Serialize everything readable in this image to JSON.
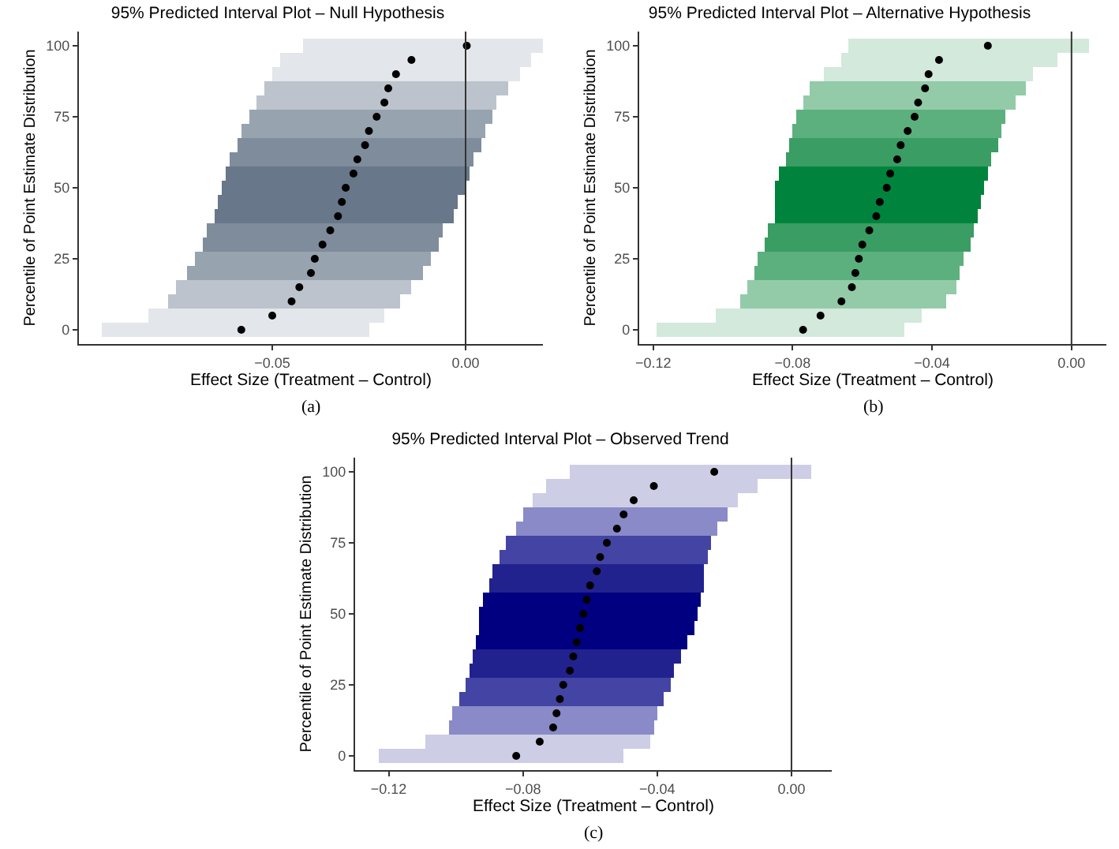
{
  "chart_data": [
    {
      "type": "bar",
      "orientation": "horizontal",
      "title": "95% Predicted Interval Plot – Null Hypothesis",
      "xlabel": "Effect Size (Treatment – Control)",
      "ylabel": "Percentile of Point Estimate Distribution",
      "annotations": [
        "(a)"
      ],
      "categories": [
        "100",
        null,
        null,
        null,
        null,
        "75",
        null,
        null,
        null,
        null,
        "50",
        null,
        null,
        null,
        null,
        "25",
        null,
        null,
        null,
        null,
        "0"
      ],
      "series": [
        {
          "type": "bar",
          "base": [
            -0.042,
            -0.048,
            -0.05,
            -0.052,
            -0.054,
            -0.056,
            -0.058,
            -0.059,
            -0.061,
            -0.062,
            -0.063,
            -0.064,
            -0.065,
            -0.067,
            -0.068,
            -0.07,
            -0.072,
            -0.075,
            -0.077,
            -0.082,
            -0.094
          ],
          "values": [
            0.062,
            0.065,
            0.064,
            0.063,
            0.062,
            0.063,
            0.063,
            0.063,
            0.063,
            0.063,
            0.063,
            0.062,
            0.062,
            0.061,
            0.061,
            0.061,
            0.061,
            0.061,
            0.06,
            0.061,
            0.069
          ],
          "colors": [
            "#e3e6ea",
            "#e3e6ea",
            "#e3e6ea",
            "#bcc3cc",
            "#bcc3cc",
            "#98a3b0",
            "#98a3b0",
            "#7f8c9b",
            "#7f8c9b",
            "#687789",
            "#687789",
            "#687789",
            "#687789",
            "#7f8c9b",
            "#7f8c9b",
            "#98a3b0",
            "#98a3b0",
            "#bcc3cc",
            "#bcc3cc",
            "#e3e6ea",
            "#e3e6ea"
          ]
        },
        {
          "type": "scatter",
          "color": "#000000",
          "values": [
            0.0003,
            -0.014,
            -0.018,
            -0.02,
            -0.021,
            -0.023,
            -0.025,
            -0.026,
            -0.028,
            -0.029,
            -0.031,
            -0.032,
            -0.033,
            -0.035,
            -0.037,
            -0.039,
            -0.04,
            -0.043,
            -0.045,
            -0.05,
            -0.058
          ]
        }
      ],
      "xlim": [
        -0.1,
        0.02
      ],
      "xticks": [
        {
          "value": -0.05,
          "label": "−0.05"
        },
        {
          "value": 0,
          "label": "0.00"
        }
      ],
      "ref_lines": [
        {
          "axis": "x",
          "value": 0,
          "color": "#333333"
        }
      ],
      "grid": false,
      "legend": false,
      "marker": "circle"
    },
    {
      "type": "bar",
      "orientation": "horizontal",
      "title": "95% Predicted Interval Plot – Alternative Hypothesis",
      "xlabel": "Effect Size (Treatment – Control)",
      "ylabel": "Percentile of Point Estimate Distribution",
      "annotations": [
        "(b)"
      ],
      "categories": [
        "100",
        null,
        null,
        null,
        null,
        "75",
        null,
        null,
        null,
        null,
        "50",
        null,
        null,
        null,
        null,
        "25",
        null,
        null,
        null,
        null,
        "0"
      ],
      "series": [
        {
          "type": "bar",
          "base": [
            -0.064,
            -0.066,
            -0.071,
            -0.075,
            -0.077,
            -0.079,
            -0.08,
            -0.081,
            -0.082,
            -0.084,
            -0.085,
            -0.085,
            -0.085,
            -0.087,
            -0.088,
            -0.09,
            -0.091,
            -0.093,
            -0.095,
            -0.102,
            -0.119
          ],
          "values": [
            0.069,
            0.062,
            0.06,
            0.062,
            0.061,
            0.06,
            0.06,
            0.06,
            0.059,
            0.06,
            0.06,
            0.059,
            0.058,
            0.059,
            0.059,
            0.059,
            0.059,
            0.06,
            0.059,
            0.059,
            0.071
          ],
          "colors": [
            "#d2e9dc",
            "#d2e9dc",
            "#d2e9dc",
            "#93cba9",
            "#93cba9",
            "#5cb07e",
            "#5cb07e",
            "#3a9d63",
            "#3a9d63",
            "#00843d",
            "#00843d",
            "#00843d",
            "#00843d",
            "#3a9d63",
            "#3a9d63",
            "#5cb07e",
            "#5cb07e",
            "#93cba9",
            "#93cba9",
            "#d2e9dc",
            "#d2e9dc"
          ]
        },
        {
          "type": "scatter",
          "color": "#000000",
          "values": [
            -0.024,
            -0.038,
            -0.041,
            -0.042,
            -0.044,
            -0.045,
            -0.047,
            -0.049,
            -0.05,
            -0.052,
            -0.053,
            -0.055,
            -0.056,
            -0.058,
            -0.06,
            -0.061,
            -0.062,
            -0.063,
            -0.066,
            -0.072,
            -0.077
          ]
        }
      ],
      "xlim": [
        -0.124,
        0.01
      ],
      "xticks": [
        {
          "value": -0.12,
          "label": "−0.12"
        },
        {
          "value": -0.08,
          "label": "−0.08"
        },
        {
          "value": -0.04,
          "label": "−0.04"
        },
        {
          "value": 0,
          "label": "0.00"
        }
      ],
      "ref_lines": [
        {
          "axis": "x",
          "value": 0,
          "color": "#333333"
        }
      ],
      "grid": false,
      "legend": false,
      "marker": "circle"
    },
    {
      "type": "bar",
      "orientation": "horizontal",
      "title": "95% Predicted Interval Plot – Observed Trend",
      "xlabel": "Effect Size (Treatment – Control)",
      "ylabel": "Percentile of Point Estimate Distribution",
      "annotations": [
        "(c)"
      ],
      "categories": [
        "100",
        null,
        null,
        null,
        null,
        "75",
        null,
        null,
        null,
        null,
        "50",
        null,
        null,
        null,
        null,
        "25",
        null,
        null,
        null,
        null,
        "0"
      ],
      "series": [
        {
          "type": "bar",
          "base": [
            -0.066,
            -0.073,
            -0.077,
            -0.08,
            -0.082,
            -0.085,
            -0.087,
            -0.089,
            -0.09,
            -0.092,
            -0.093,
            -0.093,
            -0.094,
            -0.095,
            -0.096,
            -0.097,
            -0.099,
            -0.101,
            -0.102,
            -0.109,
            -0.123
          ],
          "values": [
            0.072,
            0.063,
            0.061,
            0.061,
            0.06,
            0.061,
            0.062,
            0.063,
            0.064,
            0.065,
            0.065,
            0.064,
            0.063,
            0.062,
            0.061,
            0.061,
            0.061,
            0.061,
            0.061,
            0.067,
            0.073
          ],
          "colors": [
            "#cdcde6",
            "#cdcde6",
            "#cdcde6",
            "#8a8ac8",
            "#8a8ac8",
            "#4444a4",
            "#4444a4",
            "#22228f",
            "#22228f",
            "#000080",
            "#000080",
            "#000080",
            "#000080",
            "#22228f",
            "#22228f",
            "#4444a4",
            "#4444a4",
            "#8a8ac8",
            "#8a8ac8",
            "#cdcde6",
            "#cdcde6"
          ]
        },
        {
          "type": "scatter",
          "color": "#000000",
          "values": [
            -0.023,
            -0.041,
            -0.047,
            -0.05,
            -0.052,
            -0.055,
            -0.057,
            -0.058,
            -0.06,
            -0.061,
            -0.062,
            -0.063,
            -0.064,
            -0.065,
            -0.066,
            -0.068,
            -0.069,
            -0.07,
            -0.071,
            -0.075,
            -0.082
          ]
        }
      ],
      "xlim": [
        -0.13,
        0.012
      ],
      "xticks": [
        {
          "value": -0.12,
          "label": "−0.12"
        },
        {
          "value": -0.08,
          "label": "−0.08"
        },
        {
          "value": -0.04,
          "label": "−0.04"
        },
        {
          "value": 0,
          "label": "0.00"
        }
      ],
      "ref_lines": [
        {
          "axis": "x",
          "value": 0,
          "color": "#333333"
        }
      ],
      "grid": false,
      "legend": false,
      "marker": "circle"
    }
  ]
}
